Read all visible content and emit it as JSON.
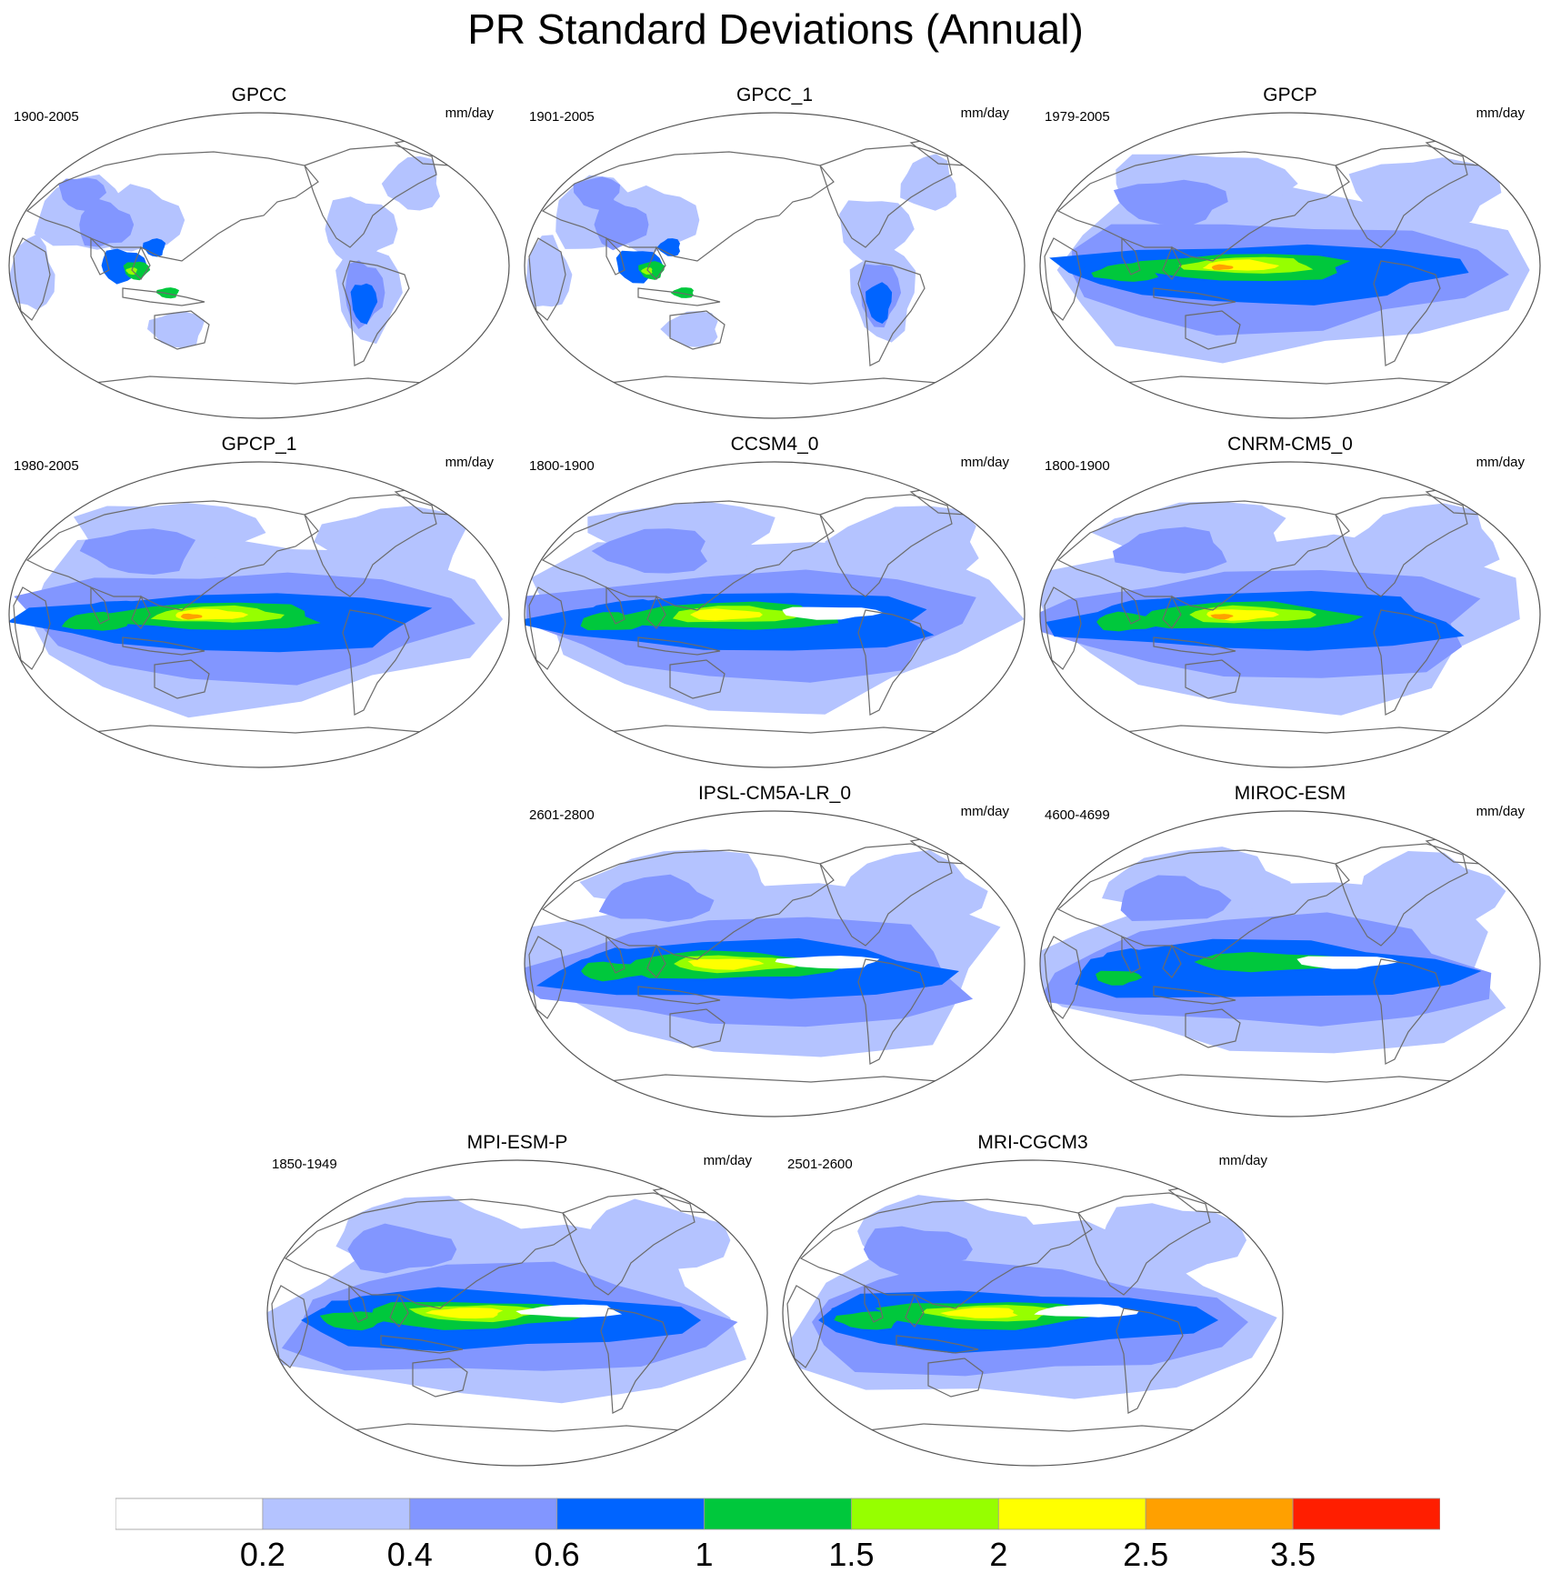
{
  "title": "PR Standard Deviations (Annual)",
  "units": "mm/day",
  "panels": [
    {
      "name": "GPCC",
      "period": "1900-2005",
      "kind": "obs_land"
    },
    {
      "name": "GPCC_1",
      "period": "1901-2005",
      "kind": "obs_land"
    },
    {
      "name": "GPCP",
      "period": "1979-2005",
      "kind": "obs"
    },
    {
      "name": "GPCP_1",
      "period": "1980-2005",
      "kind": "obs"
    },
    {
      "name": "CCSM4_0",
      "period": "1800-1900",
      "kind": "model_cold"
    },
    {
      "name": "CNRM-CM5_0",
      "period": "1800-1900",
      "kind": "model"
    },
    {
      "name": "IPSL-CM5A-LR_0",
      "period": "2601-2800",
      "kind": "model_cold"
    },
    {
      "name": "MIROC-ESM",
      "period": "4600-4699",
      "kind": "model_weak"
    },
    {
      "name": "MPI-ESM-P",
      "period": "1850-1949",
      "kind": "model_cold"
    },
    {
      "name": "MRI-CGCM3",
      "period": "2501-2600",
      "kind": "model_cold"
    }
  ],
  "colorbar": {
    "colors": [
      "#ffffff",
      "#b4c3ff",
      "#8296ff",
      "#0064ff",
      "#00c83c",
      "#96ff00",
      "#ffff00",
      "#ffa000",
      "#ff1e00"
    ],
    "labels": [
      "0.2",
      "0.4",
      "0.6",
      "1",
      "1.5",
      "2",
      "2.5",
      "3.5"
    ]
  }
}
